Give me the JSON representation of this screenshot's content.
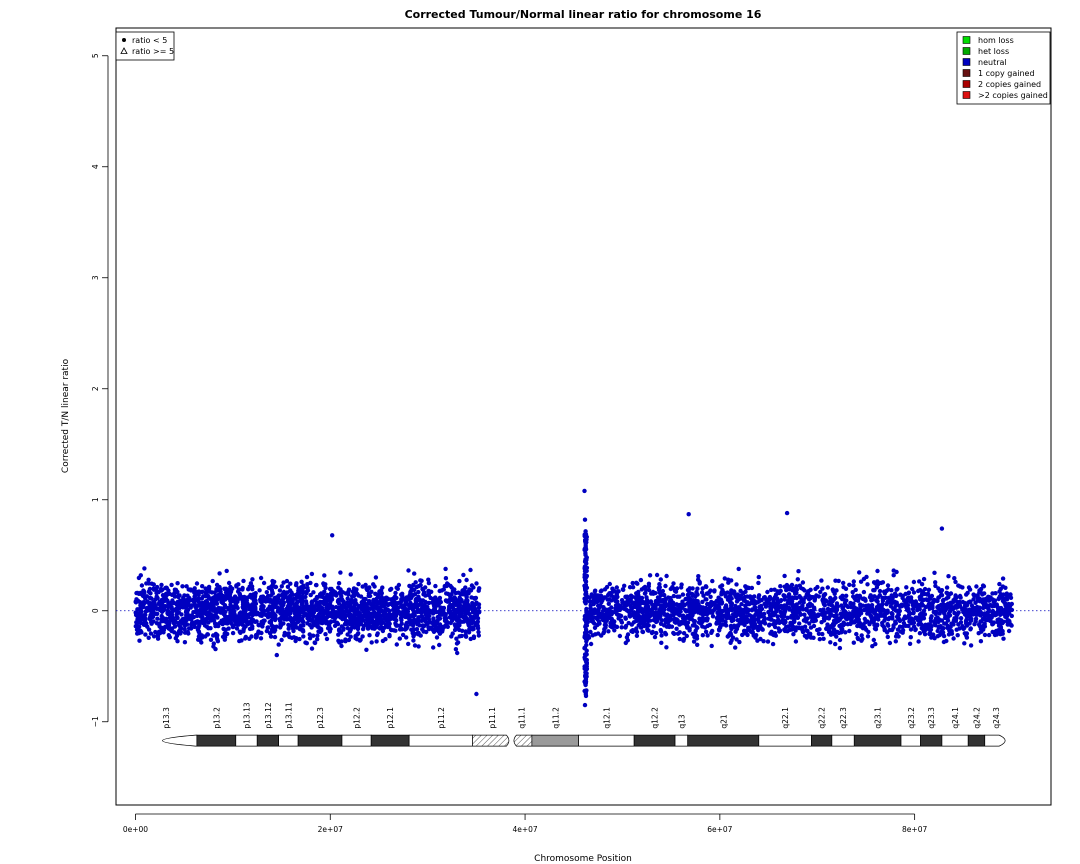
{
  "chart_data": {
    "type": "scatter",
    "title": "Corrected Tumour/Normal linear ratio for chromosome  16",
    "xlabel": "Chromosome Position",
    "ylabel": "Corrected T/N linear ratio",
    "xlim": [
      -2000000,
      94000000
    ],
    "ylim": [
      -1.75,
      5.25
    ],
    "x_ticks": [
      {
        "value": 0,
        "label": "0e+00"
      },
      {
        "value": 20000000,
        "label": "2e+07"
      },
      {
        "value": 40000000,
        "label": "4e+07"
      },
      {
        "value": 60000000,
        "label": "6e+07"
      },
      {
        "value": 80000000,
        "label": "8e+07"
      }
    ],
    "y_ticks": [
      {
        "value": -1,
        "label": "−1"
      },
      {
        "value": 0,
        "label": "0"
      },
      {
        "value": 1,
        "label": "1"
      },
      {
        "value": 2,
        "label": "2"
      },
      {
        "value": 3,
        "label": "3"
      },
      {
        "value": 4,
        "label": "4"
      },
      {
        "value": 5,
        "label": "5"
      }
    ],
    "reference_line": {
      "y": 0,
      "style": "dotted",
      "color": "#0000bb"
    },
    "series": [
      {
        "name": "neutral",
        "color": "#0000c0",
        "segments": [
          {
            "x_start": 0,
            "x_end": 35300000,
            "center": 0.0,
            "spread": 0.3
          },
          {
            "x_start": 46300000,
            "x_end": 90000000,
            "center": 0.0,
            "spread": 0.3
          }
        ],
        "notable_points": [
          {
            "x": 46100000,
            "y": 1.08
          },
          {
            "x": 46150000,
            "y": 0.82
          },
          {
            "x": 46150000,
            "y": -0.85
          },
          {
            "x": 35000000,
            "y": -0.75
          },
          {
            "x": 56800000,
            "y": 0.87
          },
          {
            "x": 66900000,
            "y": 0.88
          },
          {
            "x": 20200000,
            "y": 0.68
          },
          {
            "x": 82800000,
            "y": 0.74
          }
        ]
      }
    ],
    "legend_shapes": [
      {
        "label": "ratio < 5",
        "shape": "filled-circle"
      },
      {
        "label": "ratio >= 5",
        "shape": "open-triangle"
      }
    ],
    "legend_states": [
      {
        "label": "hom loss",
        "color": "#00dd00"
      },
      {
        "label": "het loss",
        "color": "#00aa00"
      },
      {
        "label": "neutral",
        "color": "#0000c0"
      },
      {
        "label": "1 copy gained",
        "color": "#661111"
      },
      {
        "label": "2 copies gained",
        "color": "#aa0000"
      },
      {
        "label": ">2 copies gained",
        "color": "#dd1111"
      }
    ],
    "grid": false,
    "legend_placement": [
      "top-left",
      "top-right"
    ],
    "ideogram": {
      "y": -1.17,
      "bands": [
        {
          "name": "p13.3",
          "start": 0,
          "end": 6300000,
          "stain": "gneg"
        },
        {
          "name": "p13.2",
          "start": 6300000,
          "end": 10300000,
          "stain": "gpos50"
        },
        {
          "name": "p13.13",
          "start": 10300000,
          "end": 12500000,
          "stain": "gneg"
        },
        {
          "name": "p13.12",
          "start": 12500000,
          "end": 14700000,
          "stain": "gpos50"
        },
        {
          "name": "p13.11",
          "start": 14700000,
          "end": 16700000,
          "stain": "gneg"
        },
        {
          "name": "p12.3",
          "start": 16700000,
          "end": 21200000,
          "stain": "gpos50"
        },
        {
          "name": "p12.2",
          "start": 21200000,
          "end": 24200000,
          "stain": "gneg"
        },
        {
          "name": "p12.1",
          "start": 24200000,
          "end": 28100000,
          "stain": "gpos50"
        },
        {
          "name": "p11.2",
          "start": 28100000,
          "end": 34600000,
          "stain": "gneg"
        },
        {
          "name": "p11.1",
          "start": 34600000,
          "end": 38600000,
          "stain": "acen"
        },
        {
          "name": "q11.1",
          "start": 38600000,
          "end": 40700000,
          "stain": "acen"
        },
        {
          "name": "q11.2",
          "start": 40700000,
          "end": 45500000,
          "stain": "gvar"
        },
        {
          "name": "q12.1",
          "start": 45500000,
          "end": 51200000,
          "stain": "gneg"
        },
        {
          "name": "q12.2",
          "start": 51200000,
          "end": 55400000,
          "stain": "gpos50"
        },
        {
          "name": "q13",
          "start": 55400000,
          "end": 56700000,
          "stain": "gneg"
        },
        {
          "name": "q21",
          "start": 56700000,
          "end": 64000000,
          "stain": "gpos50"
        },
        {
          "name": "q22.1",
          "start": 64000000,
          "end": 69400000,
          "stain": "gneg"
        },
        {
          "name": "q22.2",
          "start": 69400000,
          "end": 71500000,
          "stain": "gpos50"
        },
        {
          "name": "q22.3",
          "start": 71500000,
          "end": 73800000,
          "stain": "gneg"
        },
        {
          "name": "q23.1",
          "start": 73800000,
          "end": 78600000,
          "stain": "gpos50"
        },
        {
          "name": "q23.2",
          "start": 78600000,
          "end": 80600000,
          "stain": "gneg"
        },
        {
          "name": "q23.3",
          "start": 80600000,
          "end": 82800000,
          "stain": "gpos50"
        },
        {
          "name": "q24.1",
          "start": 82800000,
          "end": 85500000,
          "stain": "gneg"
        },
        {
          "name": "q24.2",
          "start": 85500000,
          "end": 87200000,
          "stain": "gpos50"
        },
        {
          "name": "q24.3",
          "start": 87200000,
          "end": 89500000,
          "stain": "gneg"
        }
      ]
    }
  }
}
